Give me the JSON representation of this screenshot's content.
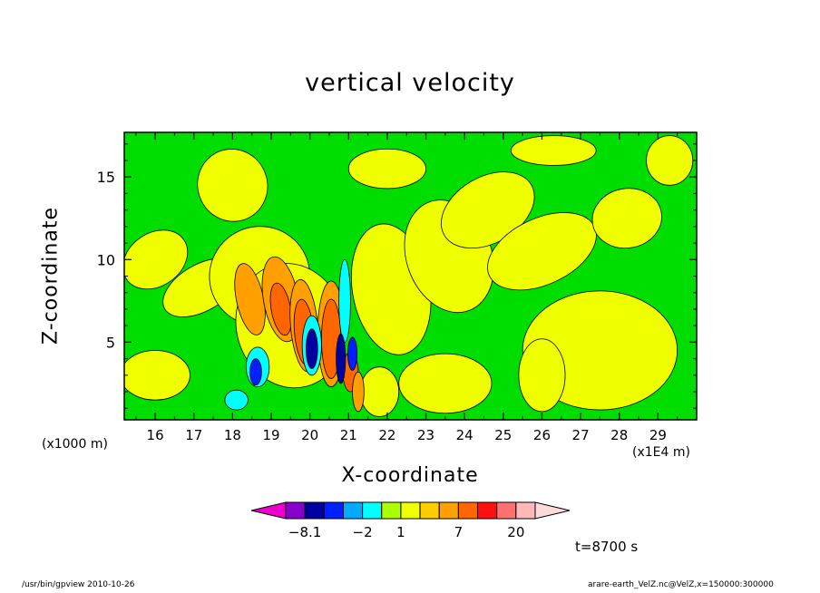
{
  "chart_data": {
    "type": "heatmap",
    "title": "vertical velocity",
    "xlabel": "X-coordinate",
    "ylabel": "Z-coordinate",
    "x_unit_left": "(x1000 m)",
    "x_unit_right": "(x1E4 m)",
    "xlim": [
      15.2,
      30.0
    ],
    "ylim": [
      0.3,
      17.7
    ],
    "x_ticks": [
      "16",
      "17",
      "18",
      "19",
      "20",
      "21",
      "22",
      "23",
      "24",
      "25",
      "26",
      "27",
      "28",
      "29"
    ],
    "y_ticks": [
      "5",
      "10",
      "15"
    ],
    "time_label": "t=8700 s",
    "background_level": "green",
    "regions": [
      {
        "color": "#f0ff00",
        "cx": 18.0,
        "cy": 14.5,
        "rx": 0.9,
        "ry": 2.2,
        "rot": -20
      },
      {
        "color": "#f0ff00",
        "cx": 16.0,
        "cy": 10.0,
        "rx": 0.9,
        "ry": 1.6,
        "rot": -35
      },
      {
        "color": "#f0ff00",
        "cx": 17.2,
        "cy": 8.3,
        "rx": 1.1,
        "ry": 1.4,
        "rot": -30
      },
      {
        "color": "#f0ff00",
        "cx": 16.0,
        "cy": 3.0,
        "rx": 0.9,
        "ry": 1.5,
        "rot": 0
      },
      {
        "color": "#f0ff00",
        "cx": 18.7,
        "cy": 9.0,
        "rx": 1.3,
        "ry": 3.0,
        "rot": -25
      },
      {
        "color": "#f0ff00",
        "cx": 22.1,
        "cy": 8.2,
        "rx": 1.0,
        "ry": 4.0,
        "rot": -10
      },
      {
        "color": "#f0ff00",
        "cx": 23.6,
        "cy": 10.2,
        "rx": 1.1,
        "ry": 3.5,
        "rot": -20
      },
      {
        "color": "#f0ff00",
        "cx": 24.6,
        "cy": 13.0,
        "rx": 1.3,
        "ry": 2.0,
        "rot": -30
      },
      {
        "color": "#f0ff00",
        "cx": 22.0,
        "cy": 15.5,
        "rx": 1.0,
        "ry": 1.2,
        "rot": 0
      },
      {
        "color": "#f0ff00",
        "cx": 26.0,
        "cy": 10.5,
        "rx": 1.5,
        "ry": 2.0,
        "rot": -25
      },
      {
        "color": "#f0ff00",
        "cx": 26.3,
        "cy": 16.6,
        "rx": 1.1,
        "ry": 0.9,
        "rot": 0
      },
      {
        "color": "#f0ff00",
        "cx": 28.2,
        "cy": 12.5,
        "rx": 0.9,
        "ry": 1.8,
        "rot": -10
      },
      {
        "color": "#f0ff00",
        "cx": 29.3,
        "cy": 16.0,
        "rx": 0.6,
        "ry": 1.5,
        "rot": 0
      },
      {
        "color": "#f0ff00",
        "cx": 27.5,
        "cy": 4.5,
        "rx": 2.0,
        "ry": 3.6,
        "rot": 0
      },
      {
        "color": "#f0ff00",
        "cx": 26.0,
        "cy": 3.0,
        "rx": 0.6,
        "ry": 2.2,
        "rot": 0
      },
      {
        "color": "#f0ff00",
        "cx": 23.5,
        "cy": 2.5,
        "rx": 1.2,
        "ry": 1.8,
        "rot": 0
      },
      {
        "color": "#f0ff00",
        "cx": 21.8,
        "cy": 2.0,
        "rx": 0.5,
        "ry": 1.5,
        "rot": 0
      },
      {
        "color": "#f0ff00",
        "cx": 19.5,
        "cy": 6.0,
        "rx": 1.4,
        "ry": 3.8,
        "rot": -15
      },
      {
        "color": "#ffa000",
        "cx": 18.45,
        "cy": 7.6,
        "rx": 0.35,
        "ry": 2.2,
        "rot": -12
      },
      {
        "color": "#ffa000",
        "cx": 19.25,
        "cy": 7.6,
        "rx": 0.45,
        "ry": 2.6,
        "rot": -10
      },
      {
        "color": "#ff6600",
        "cx": 19.25,
        "cy": 7.0,
        "rx": 0.25,
        "ry": 1.6,
        "rot": -10
      },
      {
        "color": "#ffa000",
        "cx": 19.85,
        "cy": 6.0,
        "rx": 0.35,
        "ry": 2.8,
        "rot": -5
      },
      {
        "color": "#ff6600",
        "cx": 19.85,
        "cy": 5.6,
        "rx": 0.25,
        "ry": 2.0,
        "rot": -5
      },
      {
        "color": "#ffa000",
        "cx": 20.55,
        "cy": 5.5,
        "rx": 0.35,
        "ry": 3.2,
        "rot": 0
      },
      {
        "color": "#ff6600",
        "cx": 20.55,
        "cy": 5.2,
        "rx": 0.25,
        "ry": 2.4,
        "rot": 0
      },
      {
        "color": "#ff6600",
        "cx": 21.05,
        "cy": 3.2,
        "rx": 0.2,
        "ry": 1.2,
        "rot": 0
      },
      {
        "color": "#ffa000",
        "cx": 21.25,
        "cy": 2.0,
        "rx": 0.15,
        "ry": 1.2,
        "rot": 0
      },
      {
        "color": "#00ffff",
        "cx": 18.65,
        "cy": 3.5,
        "rx": 0.3,
        "ry": 1.2,
        "rot": 0
      },
      {
        "color": "#0020ff",
        "cx": 18.6,
        "cy": 3.2,
        "rx": 0.15,
        "ry": 0.8,
        "rot": 0
      },
      {
        "color": "#00ffff",
        "cx": 20.05,
        "cy": 4.8,
        "rx": 0.25,
        "ry": 1.8,
        "rot": 0
      },
      {
        "color": "#0000a0",
        "cx": 20.05,
        "cy": 4.6,
        "rx": 0.15,
        "ry": 1.2,
        "rot": 0
      },
      {
        "color": "#00ffff",
        "cx": 20.9,
        "cy": 7.5,
        "rx": 0.15,
        "ry": 2.5,
        "rot": 0
      },
      {
        "color": "#0000a0",
        "cx": 20.8,
        "cy": 4.0,
        "rx": 0.12,
        "ry": 1.5,
        "rot": 0
      },
      {
        "color": "#0020ff",
        "cx": 21.1,
        "cy": 4.3,
        "rx": 0.12,
        "ry": 1.0,
        "rot": 0
      },
      {
        "color": "#00ffff",
        "cx": 18.1,
        "cy": 1.5,
        "rx": 0.3,
        "ry": 0.6,
        "rot": 0
      }
    ],
    "colorbar": {
      "colors": [
        "#ee00cc",
        "#8800cc",
        "#0000a0",
        "#0020ff",
        "#00aaff",
        "#00ffff",
        "#aaff00",
        "#f0ff00",
        "#ffcc00",
        "#ffa000",
        "#ff6600",
        "#ff1010",
        "#ff7070",
        "#ffb8b8",
        "#ffdada"
      ],
      "labels": [
        {
          "text": "−8.1",
          "boundary": 1
        },
        {
          "text": "−2",
          "boundary": 4
        },
        {
          "text": "1",
          "boundary": 6
        },
        {
          "text": "7",
          "boundary": 9
        },
        {
          "text": "20",
          "boundary": 12
        }
      ]
    }
  },
  "footer_left": "/usr/bin/gpview   2010-10-26",
  "footer_right": "arare-earth_VelZ.nc@VelZ,x=150000:300000"
}
